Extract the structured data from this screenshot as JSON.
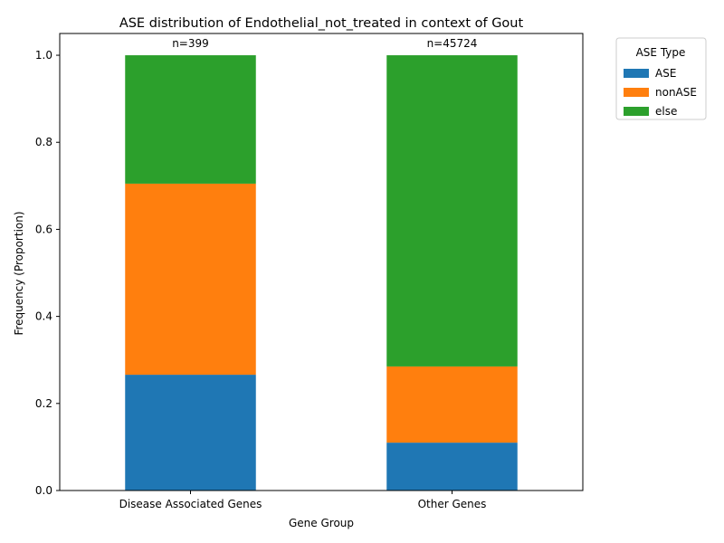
{
  "chart_data": {
    "type": "bar",
    "stacked": true,
    "title": "ASE distribution of Endothelial_not_treated in context of Gout",
    "xlabel": "Gene Group",
    "ylabel": "Frequency (Proportion)",
    "ylim": [
      0,
      1.05
    ],
    "yticks": [
      0.0,
      0.2,
      0.4,
      0.6,
      0.8,
      1.0
    ],
    "ytick_labels": [
      "0.0",
      "0.2",
      "0.4",
      "0.6",
      "0.8",
      "1.0"
    ],
    "categories": [
      "Disease Associated Genes",
      "Other Genes"
    ],
    "counts": [
      "n=399",
      "n=45724"
    ],
    "series": [
      {
        "name": "ASE",
        "color": "#1f77b4",
        "values": [
          0.266,
          0.11
        ]
      },
      {
        "name": "nonASE",
        "color": "#ff7f0e",
        "values": [
          0.439,
          0.175
        ]
      },
      {
        "name": "else",
        "color": "#2ca02c",
        "values": [
          0.295,
          0.715
        ]
      }
    ],
    "legend": {
      "title": "ASE Type",
      "placement": "outside-top-right"
    }
  }
}
